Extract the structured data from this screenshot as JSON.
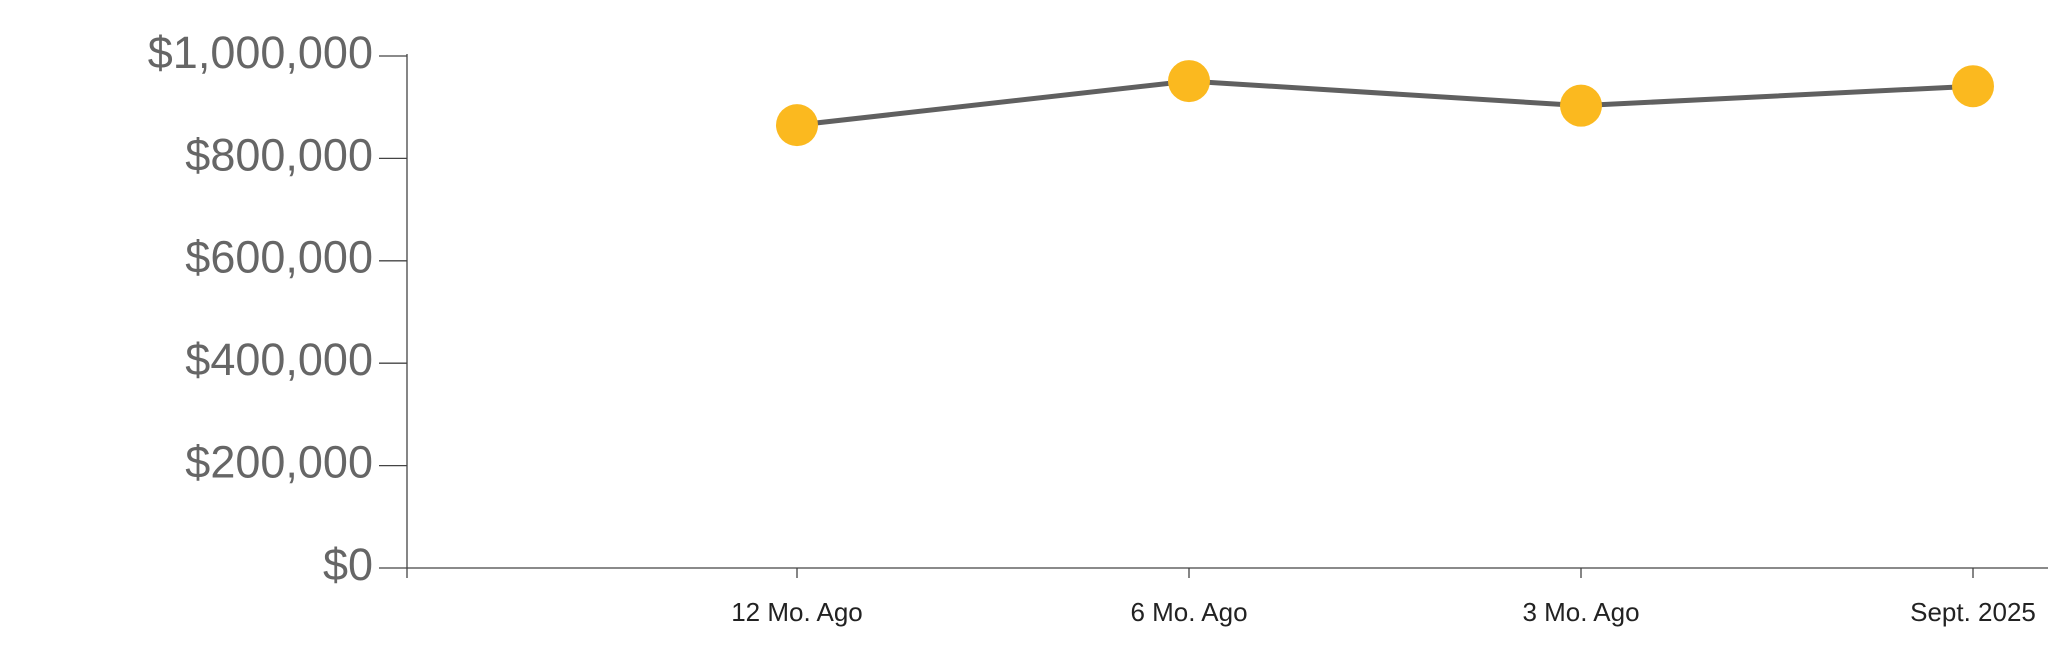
{
  "chart_data": {
    "type": "line",
    "categories": [
      "12 Mo. Ago",
      "6 Mo. Ago",
      "3 Mo. Ago",
      "Sept. 2025"
    ],
    "series": [
      {
        "values": [
          865000,
          951000,
          903000,
          941000
        ],
        "color": "#606060",
        "marker_color": "#fbb91f"
      }
    ],
    "ylim": [
      0,
      1000000
    ],
    "yticks": [
      {
        "value": 0,
        "label": "$0"
      },
      {
        "value": 200000,
        "label": "$200,000"
      },
      {
        "value": 400000,
        "label": "$400,000"
      },
      {
        "value": 600000,
        "label": "$600,000"
      },
      {
        "value": 800000,
        "label": "$800,000"
      },
      {
        "value": 1000000,
        "label": "$1,000,000"
      }
    ],
    "grid": false
  }
}
